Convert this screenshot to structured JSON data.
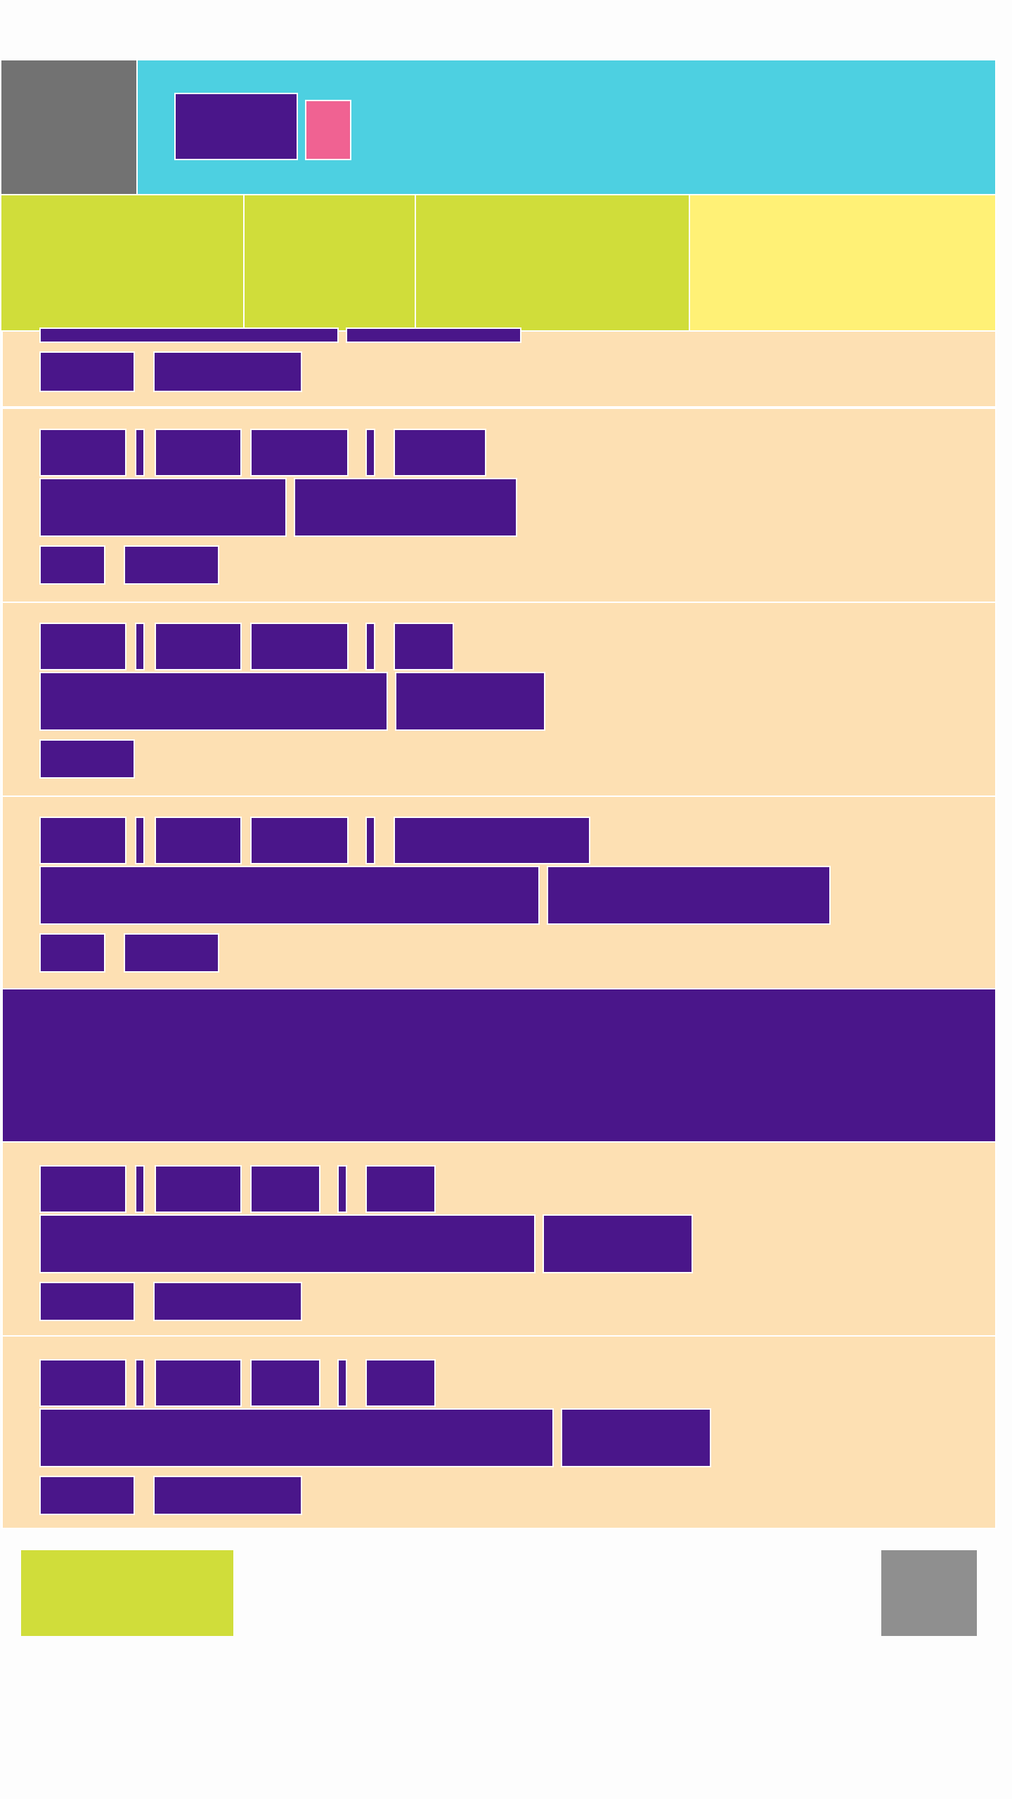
{
  "app": {
    "accent_colors": {
      "header_bg": "#4dd0e1",
      "menu_bg": "#727272",
      "tab_active": "#fff176",
      "tab_inactive": "#d0dd3a",
      "row_bg": "#fde0b3",
      "text_block": "#4a168a",
      "badge": "#f06292",
      "footer_primary": "#d0dd3a",
      "footer_secondary": "#8f8f8f"
    }
  },
  "header": {
    "menu_icon": "hamburger-menu-icon",
    "title": "",
    "badge": ""
  },
  "tabs": [
    {
      "label": "",
      "active": false
    },
    {
      "label": "",
      "active": false
    },
    {
      "label": "",
      "active": false
    },
    {
      "label": "",
      "active": true
    }
  ],
  "feed": {
    "items": [
      {
        "line1": "",
        "line2": "",
        "meta_a": "",
        "meta_b": ""
      },
      {
        "line1": "",
        "line2": "",
        "meta_a": "",
        "meta_b": ""
      },
      {
        "line1": "",
        "line2": "",
        "meta_a": "",
        "meta_b": ""
      },
      {
        "line1": "",
        "line2": "",
        "meta_a": "",
        "meta_b": ""
      },
      {
        "line1": "",
        "line2": "",
        "meta_a": "",
        "meta_b": ""
      },
      {
        "line1": "",
        "line2": "",
        "meta_a": "",
        "meta_b": ""
      }
    ],
    "banner": ""
  },
  "footer": {
    "primary_action": "",
    "secondary_action": ""
  }
}
